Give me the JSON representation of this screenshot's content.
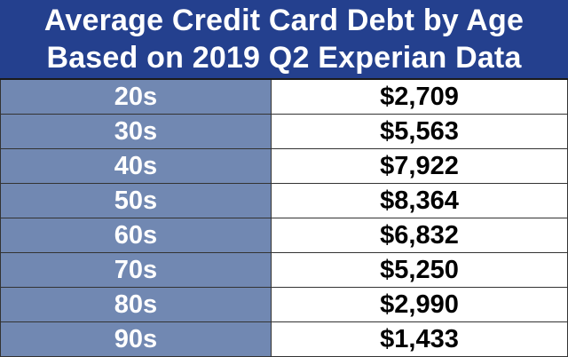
{
  "chart_data": {
    "type": "table",
    "title_lines": [
      "Average Credit Card Debt by Age",
      "Based on 2019 Q2 Experian Data"
    ],
    "rows": [
      {
        "age": "20s",
        "value": "$2,709"
      },
      {
        "age": "30s",
        "value": "$5,563"
      },
      {
        "age": "40s",
        "value": "$7,922"
      },
      {
        "age": "50s",
        "value": "$8,364"
      },
      {
        "age": "60s",
        "value": "$6,832"
      },
      {
        "age": "70s",
        "value": "$5,250"
      },
      {
        "age": "80s",
        "value": "$2,990"
      },
      {
        "age": "90s",
        "value": "$1,433"
      }
    ]
  },
  "colors": {
    "header_bg": "#24408e",
    "age_cell_bg": "#7188b2",
    "value_cell_bg": "#ffffff"
  }
}
